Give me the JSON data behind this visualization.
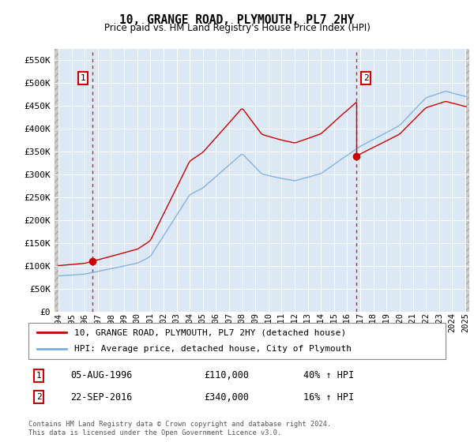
{
  "title": "10, GRANGE ROAD, PLYMOUTH, PL7 2HY",
  "subtitle": "Price paid vs. HM Land Registry's House Price Index (HPI)",
  "legend_line1": "10, GRANGE ROAD, PLYMOUTH, PL7 2HY (detached house)",
  "legend_line2": "HPI: Average price, detached house, City of Plymouth",
  "annotation1": {
    "label": "1",
    "date": "05-AUG-1996",
    "price": "£110,000",
    "hpi": "40% ↑ HPI"
  },
  "annotation2": {
    "label": "2",
    "date": "22-SEP-2016",
    "price": "£340,000",
    "hpi": "16% ↑ HPI"
  },
  "footnote": "Contains HM Land Registry data © Crown copyright and database right 2024.\nThis data is licensed under the Open Government Licence v3.0.",
  "ylim": [
    0,
    575000
  ],
  "yticks": [
    0,
    50000,
    100000,
    150000,
    200000,
    250000,
    300000,
    350000,
    400000,
    450000,
    500000,
    550000
  ],
  "ytick_labels": [
    "£0",
    "£50K",
    "£100K",
    "£150K",
    "£200K",
    "£250K",
    "£300K",
    "£350K",
    "£400K",
    "£450K",
    "£500K",
    "£550K"
  ],
  "sale1_x": 1996.583,
  "sale1_y": 110000,
  "sale2_x": 2016.72,
  "sale2_y": 340000,
  "red_line_color": "#cc0000",
  "blue_line_color": "#7aace0",
  "background_plot": "#dce9f5",
  "grid_color": "#ffffff",
  "dashed_line_color": "#cc0000",
  "xticks": [
    1994,
    1995,
    1996,
    1997,
    1998,
    1999,
    2000,
    2001,
    2002,
    2003,
    2004,
    2005,
    2006,
    2007,
    2008,
    2009,
    2010,
    2011,
    2012,
    2013,
    2014,
    2015,
    2016,
    2017,
    2018,
    2019,
    2020,
    2021,
    2022,
    2023,
    2024,
    2025
  ],
  "xlim": [
    1993.7,
    2025.3
  ]
}
